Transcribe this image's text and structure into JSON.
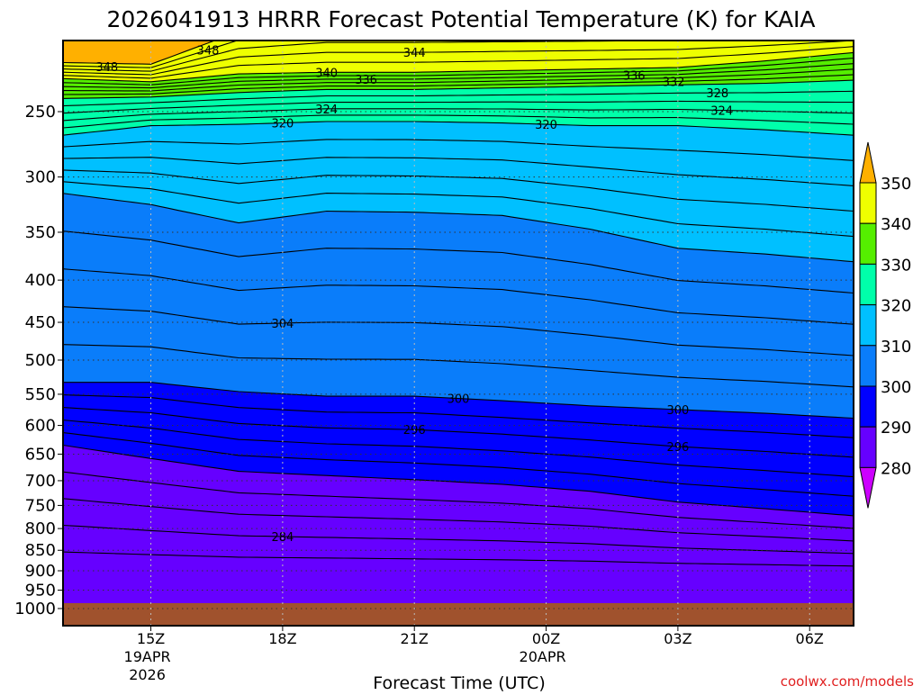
{
  "chart_data": {
    "type": "contour",
    "title": "2026041913 HRRR Forecast Potential Temperature (K) for KAIA",
    "xlabel": "Forecast Time (UTC)",
    "ylabel": "",
    "credit": "coolwx.com/models",
    "x_hours_range": [
      13,
      31
    ],
    "y_pressure_range": [
      205,
      1049
    ],
    "y_ticks": [
      250,
      300,
      350,
      400,
      450,
      500,
      550,
      600,
      650,
      700,
      750,
      800,
      850,
      900,
      950,
      1000
    ],
    "x_ticks": [
      {
        "hour": 15,
        "label": "15Z",
        "sub": [
          "19APR",
          "2026"
        ]
      },
      {
        "hour": 18,
        "label": "18Z",
        "sub": []
      },
      {
        "hour": 21,
        "label": "21Z",
        "sub": []
      },
      {
        "hour": 24,
        "label": "00Z",
        "sub": [
          "20APR"
        ]
      },
      {
        "hour": 27,
        "label": "03Z",
        "sub": []
      },
      {
        "hour": 30,
        "label": "06Z",
        "sub": []
      }
    ],
    "sample_hours": [
      13,
      15,
      17,
      19,
      21,
      23,
      25,
      27,
      29,
      31
    ],
    "isentropes": [
      {
        "theta": 280,
        "pressure": [
          920,
          920,
          920,
          920,
          920,
          920,
          920,
          920,
          920,
          920
        ]
      },
      {
        "theta": 290,
        "pressure": [
          634,
          658,
          682,
          690,
          698,
          707,
          721,
          743,
          757,
          772
        ]
      },
      {
        "theta": 300,
        "pressure": [
          532,
          532,
          546,
          553,
          553,
          560,
          568,
          574,
          580,
          588
        ]
      },
      {
        "theta": 310,
        "pressure": [
          314,
          324,
          341,
          330,
          331,
          334,
          347,
          366,
          372,
          380
        ]
      },
      {
        "theta": 320,
        "pressure": [
          267,
          260,
          259,
          257,
          257,
          258,
          260,
          260,
          263,
          267
        ]
      },
      {
        "theta": 330,
        "pressure": [
          241,
          240,
          237,
          235,
          235,
          234,
          233,
          232,
          231,
          229
        ]
      },
      {
        "theta": 340,
        "pressure": [
          228,
          230,
          225,
          224,
          224,
          223,
          222,
          221,
          217,
          212
        ]
      },
      {
        "theta": 350,
        "pressure": [
          218,
          219,
          200,
          195,
          195,
          195,
          195,
          195,
          195,
          195
        ]
      }
    ],
    "contour_interval": 2,
    "contour_labels": [
      {
        "text": "348",
        "theta": 348,
        "hour": 14.0
      },
      {
        "text": "348",
        "theta": 348,
        "hour": 19.9
      },
      {
        "text": "344",
        "theta": 344,
        "hour": 21.0
      },
      {
        "text": "340",
        "theta": 340,
        "hour": 19.0
      },
      {
        "text": "336",
        "theta": 336,
        "hour": 19.0
      },
      {
        "text": "336",
        "theta": 336,
        "hour": 26.0
      },
      {
        "text": "332",
        "theta": 332,
        "hour": 26.0
      },
      {
        "text": "328",
        "theta": 328,
        "hour": 27.0
      },
      {
        "text": "324",
        "theta": 324,
        "hour": 19.0
      },
      {
        "text": "324",
        "theta": 324,
        "hour": 28.0
      },
      {
        "text": "320",
        "theta": 320,
        "hour": 18.0
      },
      {
        "text": "320",
        "theta": 320,
        "hour": 24.0
      },
      {
        "text": "304",
        "theta": 304,
        "hour": 18.0
      },
      {
        "text": "300",
        "theta": 300,
        "hour": 22.0
      },
      {
        "text": "300",
        "theta": 300,
        "hour": 27.0
      },
      {
        "text": "296",
        "theta": 296,
        "hour": 21.0
      },
      {
        "text": "296",
        "theta": 296,
        "hour": 27.0
      },
      {
        "text": "284",
        "theta": 284,
        "hour": 18.0
      }
    ],
    "ground_pressure": 985,
    "colorbar": {
      "levels": [
        "280",
        "290",
        "300",
        "310",
        "320",
        "330",
        "340",
        "350"
      ],
      "colors": [
        "#cc00ff",
        "#6600ff",
        "#0000ff",
        "#0a7dfa",
        "#00c0ff",
        "#00ffaa",
        "#55ee00",
        "#eeff00",
        "#ffb000"
      ],
      "ground_color": "#a0522d"
    }
  }
}
